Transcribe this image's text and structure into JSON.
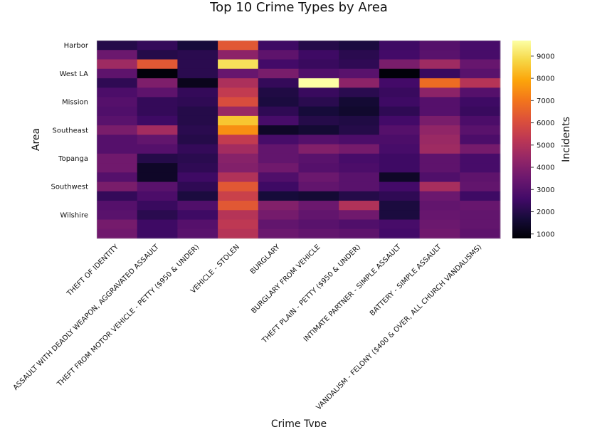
{
  "chart_data": {
    "type": "heatmap",
    "title": "Top 10 Crime Types by Area",
    "xlabel": "Crime Type",
    "ylabel": "Area",
    "colorbar_label": "Incidents",
    "colormap": "inferno",
    "colorbar_range": [
      800,
      9700
    ],
    "colorbar_ticks": [
      1000,
      2000,
      3000,
      4000,
      5000,
      6000,
      7000,
      8000,
      9000
    ],
    "categories": [
      "THEFT OF IDENTITY",
      "ASSAULT WITH DEADLY WEAPON, AGGRAVATED ASSAULT",
      "THEFT FROM MOTOR VEHICLE - PETTY ($950 & UNDER)",
      "VEHICLE - STOLEN",
      "BURGLARY",
      "BURGLARY FROM VEHICLE",
      "THEFT PLAIN - PETTY ($950 & UNDER)",
      "INTIMATE PARTNER - SIMPLE ASSAULT",
      "BATTERY - SIMPLE ASSAULT",
      "VANDALISM - FELONY ($400 & OVER, ALL CHURCH VANDALISMS)"
    ],
    "rows": [
      "Harbor",
      "",
      "",
      "West LA",
      "",
      "",
      "Mission",
      "",
      "",
      "Southeast",
      "",
      "",
      "Topanga",
      "",
      "",
      "Southwest",
      "",
      "",
      "Wilshire",
      "",
      ""
    ],
    "values": [
      [
        2000,
        2300,
        1700,
        6300,
        2500,
        2000,
        1800,
        2500,
        3000,
        2700
      ],
      [
        3500,
        2000,
        2100,
        4200,
        3200,
        2500,
        2100,
        2600,
        3100,
        2700
      ],
      [
        4600,
        6300,
        2100,
        9000,
        2600,
        2400,
        2200,
        3800,
        4600,
        3400
      ],
      [
        3200,
        900,
        2100,
        3400,
        3800,
        2900,
        3100,
        900,
        2400,
        3100
      ],
      [
        2200,
        3900,
        1200,
        4900,
        2300,
        9700,
        4200,
        2600,
        6800,
        5100
      ],
      [
        2800,
        3200,
        2300,
        5400,
        1900,
        2400,
        2100,
        2400,
        4200,
        3000
      ],
      [
        3000,
        2300,
        2200,
        6000,
        1800,
        2100,
        1600,
        2500,
        3000,
        2500
      ],
      [
        2900,
        2300,
        2000,
        4500,
        2200,
        1700,
        1500,
        2200,
        3000,
        2400
      ],
      [
        3100,
        2500,
        2000,
        8500,
        2700,
        2000,
        1900,
        2600,
        3800,
        2800
      ],
      [
        3800,
        4700,
        2100,
        7500,
        1400,
        1600,
        2000,
        3000,
        4300,
        3100
      ],
      [
        3000,
        3300,
        2000,
        5400,
        2700,
        3000,
        2800,
        2800,
        4500,
        2800
      ],
      [
        3000,
        3000,
        2300,
        4700,
        3300,
        4000,
        3700,
        2700,
        4600,
        3700
      ],
      [
        3600,
        2000,
        2100,
        4100,
        3300,
        3100,
        2700,
        2500,
        3200,
        2700
      ],
      [
        3600,
        1400,
        2200,
        4000,
        3600,
        3000,
        2800,
        2500,
        3200,
        2700
      ],
      [
        3000,
        1400,
        2500,
        5000,
        2900,
        3500,
        3100,
        1400,
        2900,
        3200
      ],
      [
        3800,
        3100,
        2200,
        6300,
        2500,
        3300,
        3100,
        2600,
        4800,
        3300
      ],
      [
        2300,
        2800,
        1800,
        5600,
        1700,
        1600,
        2000,
        2200,
        3500,
        2500
      ],
      [
        3000,
        2400,
        2900,
        6300,
        4000,
        3500,
        5000,
        1800,
        3300,
        3400
      ],
      [
        3100,
        2100,
        2500,
        5100,
        3700,
        3300,
        3600,
        1800,
        3400,
        3300
      ],
      [
        3700,
        2500,
        3000,
        5300,
        3300,
        3100,
        2900,
        2700,
        3500,
        3300
      ],
      [
        3600,
        2500,
        3100,
        5100,
        3500,
        3300,
        3200,
        2600,
        3600,
        3200
      ]
    ]
  }
}
